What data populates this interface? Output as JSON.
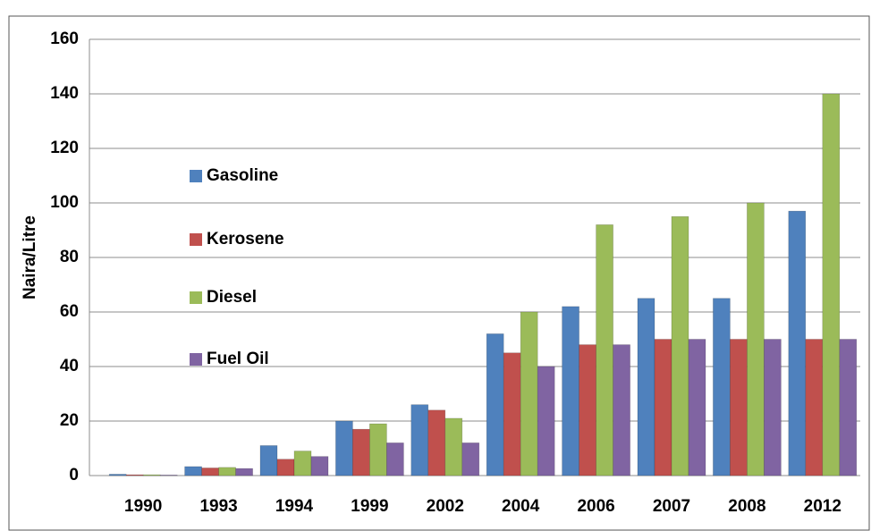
{
  "chart_data": {
    "type": "bar",
    "y_label": "Naira/Litre",
    "categories": [
      "1990",
      "1993",
      "1994",
      "1999",
      "2002",
      "2004",
      "2006",
      "2007",
      "2008",
      "2012"
    ],
    "series": [
      {
        "name": "Gasoline",
        "color": "#4f81bd",
        "values": [
          0.5,
          3.3,
          11,
          20,
          26,
          52,
          62,
          65,
          65,
          97
        ]
      },
      {
        "name": "Kerosene",
        "color": "#c0504d",
        "values": [
          0.3,
          2.8,
          6,
          17,
          24,
          45,
          48,
          50,
          50,
          50
        ]
      },
      {
        "name": "Diesel",
        "color": "#9bbb59",
        "values": [
          0.3,
          3,
          9,
          19,
          21,
          60,
          92,
          95,
          100,
          140
        ]
      },
      {
        "name": "Fuel Oil",
        "color": "#8064a2",
        "values": [
          0.2,
          2.6,
          7,
          12,
          12,
          40,
          48,
          50,
          50,
          50
        ]
      }
    ],
    "ylim": [
      0,
      160
    ],
    "yticks": [
      0,
      20,
      40,
      60,
      80,
      100,
      120,
      140,
      160
    ],
    "grid": true,
    "legend": "left"
  }
}
